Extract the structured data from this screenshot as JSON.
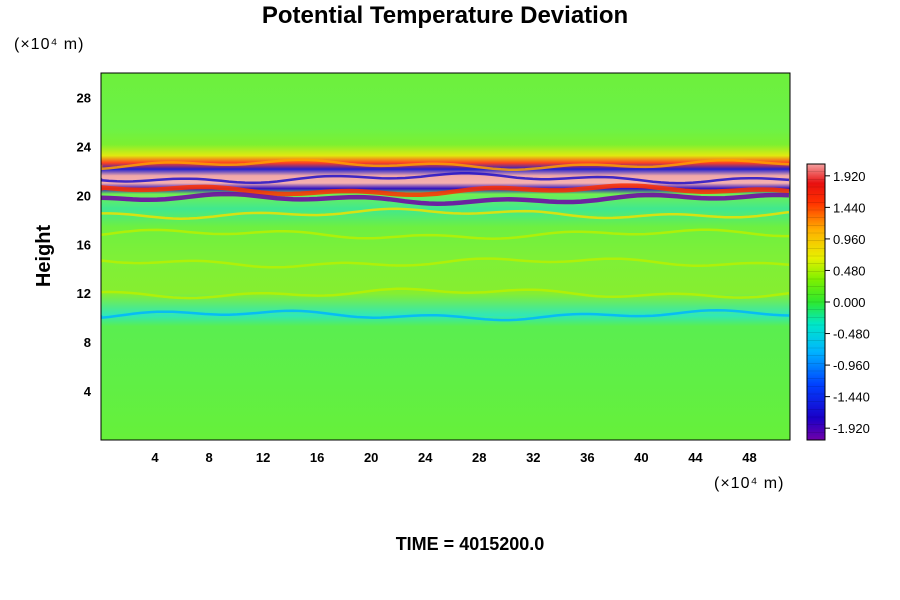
{
  "chart_data": {
    "type": "heatmap",
    "title": "Potential Temperature Deviation",
    "ylabel": "Height",
    "x_unit": "(×10⁴ m)",
    "y_unit": "(×10⁴ m)",
    "xlim": [
      0,
      51
    ],
    "ylim": [
      0,
      30
    ],
    "x_ticks": [
      "4",
      "8",
      "12",
      "16",
      "20",
      "24",
      "28",
      "32",
      "36",
      "40",
      "44",
      "48"
    ],
    "y_ticks": [
      "4",
      "8",
      "12",
      "16",
      "20",
      "24",
      "28"
    ],
    "colorbar": {
      "min": -2.1,
      "max": 2.1,
      "labels": [
        "1.920",
        "1.440",
        "0.960",
        "0.480",
        "0.000",
        "-0.480",
        "-0.960",
        "-1.440",
        "-1.920"
      ]
    },
    "features": [
      {
        "y": 20.4,
        "value": 1.9
      },
      {
        "y": 19.7,
        "value": -1.9
      },
      {
        "y": 21.4,
        "value": -1.4
      },
      {
        "y": 22.5,
        "value": 1.2
      },
      {
        "y": 18.5,
        "value": 1.0
      },
      {
        "y": 16.8,
        "value": 0.7
      },
      {
        "y": 14.5,
        "value": 0.5
      },
      {
        "y": 12.0,
        "value": 0.5
      },
      {
        "y": 10.2,
        "value": -0.4
      }
    ],
    "annotation": "TIME = 4015200.0"
  }
}
